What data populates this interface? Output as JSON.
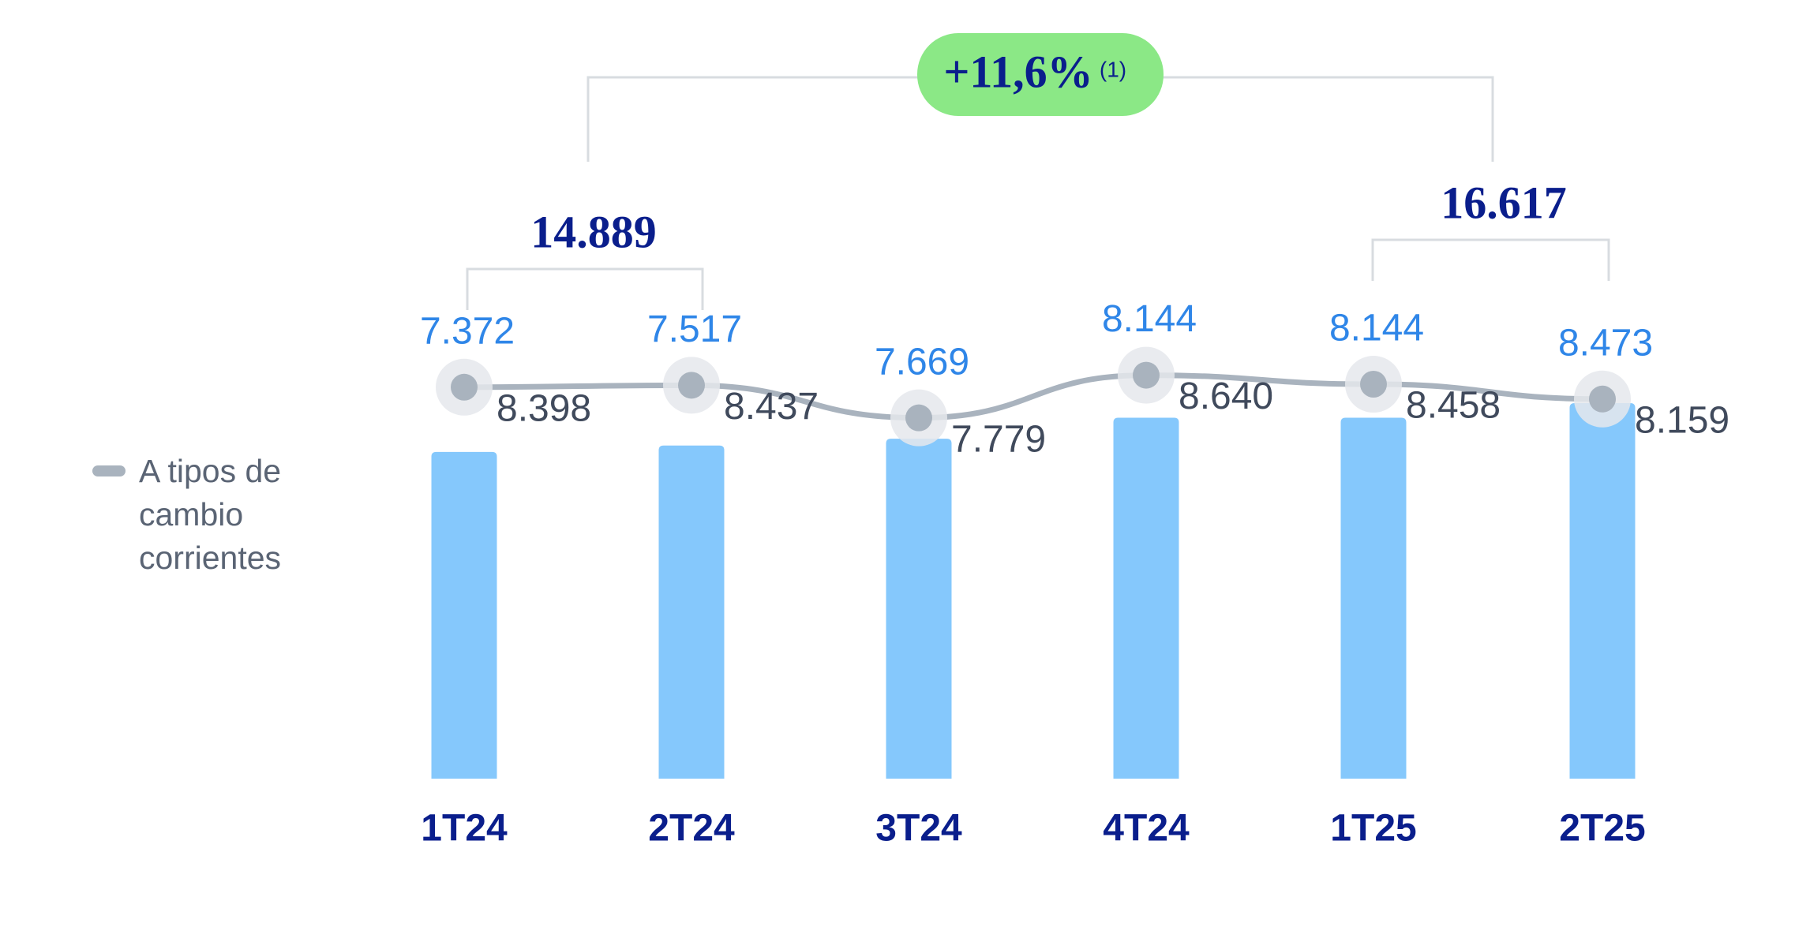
{
  "chart_data": {
    "type": "bar+line",
    "categories": [
      "1T24",
      "2T24",
      "3T24",
      "4T24",
      "1T25",
      "2T25"
    ],
    "series": [
      {
        "type": "bar",
        "color": "#85c8fc",
        "values": [
          7372,
          7517,
          7669,
          8144,
          8144,
          8473
        ],
        "value_labels": [
          "7.372",
          "7.517",
          "7.669",
          "8.144",
          "8.144",
          "8.473"
        ],
        "label_color": "#2f86e8"
      },
      {
        "type": "line",
        "name": "A tipos de cambio corrientes",
        "color": "#a9b3be",
        "axis": "y2",
        "values": [
          8398,
          8437,
          7779,
          8640,
          8458,
          8159
        ],
        "value_labels": [
          "8.398",
          "8.437",
          "7.779",
          "8.640",
          "8.458",
          "8.159"
        ],
        "label_color": "#404a5c"
      }
    ],
    "ylim": [
      0,
      17000
    ],
    "y2lim": [
      500,
      15700
    ],
    "annotations": [
      {
        "text": "14.889",
        "value": 14889
      },
      {
        "text": "16.617",
        "value": 16617
      },
      {
        "text": "+11,6%",
        "note": "(1)",
        "color": "#8be886"
      }
    ]
  }
}
